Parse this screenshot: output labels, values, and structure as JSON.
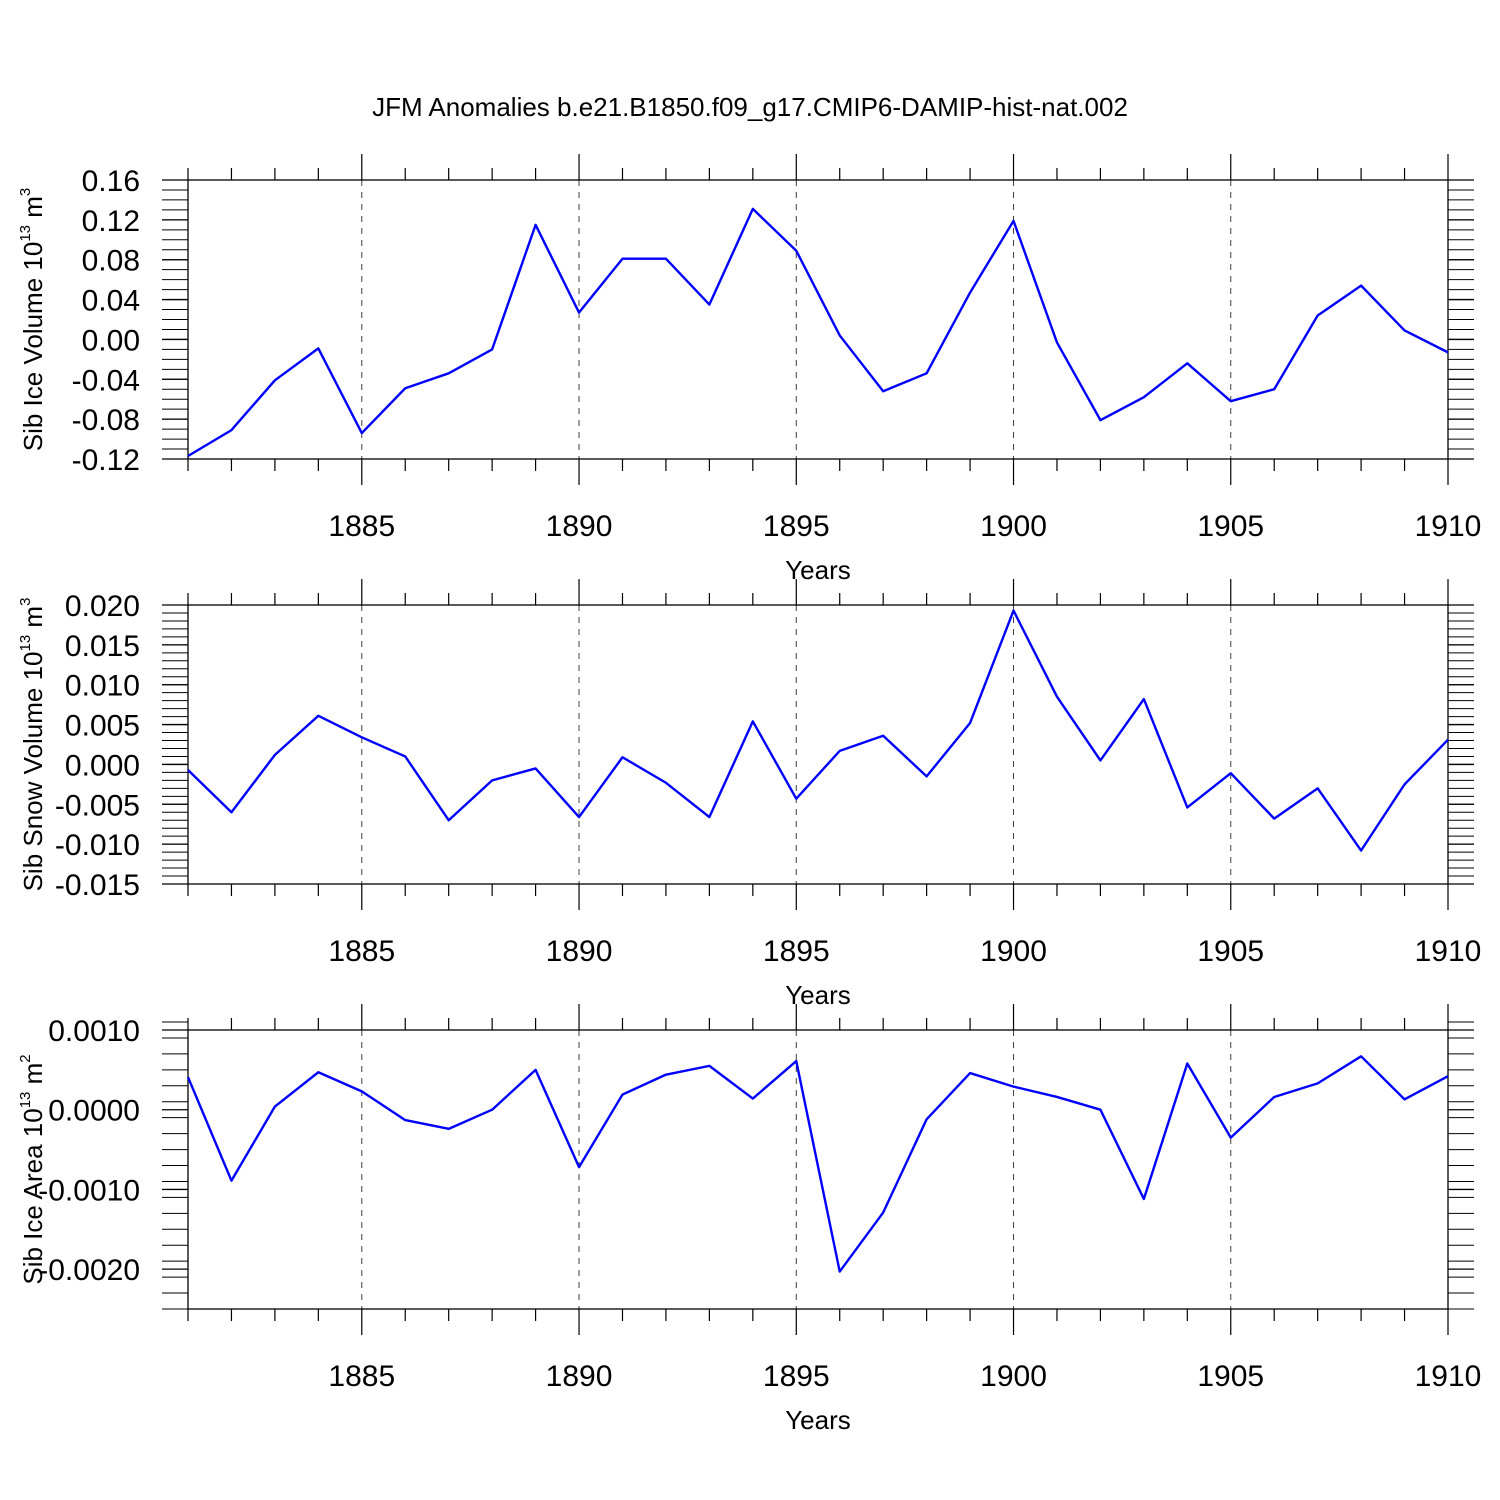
{
  "figure": {
    "title": "JFM Anomalies b.e21.B1850.f09_g17.CMIP6-DAMIP-hist-nat.002"
  },
  "chart_data": [
    {
      "type": "line",
      "xlabel": "Years",
      "ylabel": {
        "text": "Sib Ice Volume 10",
        "sup": "13",
        "unit": " m",
        "unit_sup": "3"
      },
      "xlim": [
        1881,
        1910
      ],
      "ylim": [
        -0.12,
        0.16
      ],
      "xticks": [
        1885,
        1890,
        1895,
        1900,
        1905,
        1910
      ],
      "yticks": [
        -0.12,
        -0.08,
        -0.04,
        0.0,
        0.04,
        0.08,
        0.12,
        0.16
      ],
      "ytick_labels": [
        "-0.12",
        "-0.08",
        "-0.04",
        "0.00",
        "0.04",
        "0.08",
        "0.12",
        "0.16"
      ],
      "yminor_step": 0.01,
      "grid": "dashed vertical at major x ticks",
      "series": [
        {
          "color": "#0000ff",
          "x": [
            1881,
            1882,
            1883,
            1884,
            1885,
            1886,
            1887,
            1888,
            1889,
            1890,
            1891,
            1892,
            1893,
            1894,
            1895,
            1896,
            1897,
            1898,
            1899,
            1900,
            1901,
            1902,
            1903,
            1904,
            1905,
            1906,
            1907,
            1908,
            1909,
            1910
          ],
          "y": [
            -0.117,
            -0.091,
            -0.041,
            -0.009,
            -0.094,
            -0.049,
            -0.034,
            -0.01,
            0.115,
            0.027,
            0.081,
            0.081,
            0.035,
            0.131,
            0.089,
            0.004,
            -0.052,
            -0.034,
            0.047,
            0.119,
            -0.003,
            -0.081,
            -0.058,
            -0.024,
            -0.062,
            -0.05,
            0.024,
            0.054,
            0.009,
            -0.013
          ]
        }
      ]
    },
    {
      "type": "line",
      "xlabel": "Years",
      "ylabel": {
        "text": "Sib Snow Volume 10",
        "sup": "13",
        "unit": " m",
        "unit_sup": "3"
      },
      "xlim": [
        1881,
        1910
      ],
      "ylim": [
        -0.015,
        0.02
      ],
      "xticks": [
        1885,
        1890,
        1895,
        1900,
        1905,
        1910
      ],
      "yticks": [
        -0.015,
        -0.01,
        -0.005,
        0.0,
        0.005,
        0.01,
        0.015,
        0.02
      ],
      "ytick_labels": [
        "-0.015",
        "-0.010",
        "-0.005",
        "0.000",
        "0.005",
        "0.010",
        "0.015",
        "0.020"
      ],
      "yminor_step": 0.001,
      "grid": "dashed vertical at major x ticks",
      "series": [
        {
          "color": "#0000ff",
          "x": [
            1881,
            1882,
            1883,
            1884,
            1885,
            1886,
            1887,
            1888,
            1889,
            1890,
            1891,
            1892,
            1893,
            1894,
            1895,
            1896,
            1897,
            1898,
            1899,
            1900,
            1901,
            1902,
            1903,
            1904,
            1905,
            1906,
            1907,
            1908,
            1909,
            1910
          ],
          "y": [
            -0.0007,
            -0.006,
            0.0012,
            0.0061,
            0.0034,
            0.001,
            -0.007,
            -0.002,
            -0.0005,
            -0.0066,
            0.0009,
            -0.0023,
            -0.0066,
            0.0054,
            -0.0043,
            0.0017,
            0.0036,
            -0.0015,
            0.0052,
            0.0193,
            0.0085,
            0.0005,
            0.0082,
            -0.0054,
            -0.0011,
            -0.0068,
            -0.003,
            -0.0108,
            -0.0025,
            0.0031
          ]
        }
      ]
    },
    {
      "type": "line",
      "xlabel": "Years",
      "ylabel": {
        "text": "Sib Ice Area 10",
        "sup": "13",
        "unit": " m",
        "unit_sup": "2"
      },
      "xlim": [
        1881,
        1910
      ],
      "ylim": [
        -0.0025,
        0.001
      ],
      "xticks": [
        1885,
        1890,
        1895,
        1900,
        1905,
        1910
      ],
      "yticks": [
        -0.002,
        -0.001,
        0.0,
        0.001
      ],
      "ytick_labels": [
        "-0.0020",
        "-0.0010",
        "0.0000",
        "0.0010"
      ],
      "yminor_step": 0.0002,
      "grid": "dashed vertical at major x ticks",
      "series": [
        {
          "color": "#0000ff",
          "x": [
            1881,
            1882,
            1883,
            1884,
            1885,
            1886,
            1887,
            1888,
            1889,
            1890,
            1891,
            1892,
            1893,
            1894,
            1895,
            1896,
            1897,
            1898,
            1899,
            1900,
            1901,
            1902,
            1903,
            1904,
            1905,
            1906,
            1907,
            1908,
            1909,
            1910
          ],
          "y": [
            0.00041,
            -0.00089,
            4e-05,
            0.00047,
            0.00023,
            -0.00013,
            -0.00024,
            0.0,
            0.0005,
            -0.00072,
            0.00019,
            0.00044,
            0.00055,
            0.00014,
            0.00061,
            -0.00203,
            -0.00129,
            -0.00012,
            0.00046,
            0.00029,
            0.00016,
            0.0,
            -0.00112,
            0.00058,
            -0.00035,
            0.00016,
            0.00033,
            0.00067,
            0.00013,
            0.00042
          ]
        }
      ]
    }
  ]
}
